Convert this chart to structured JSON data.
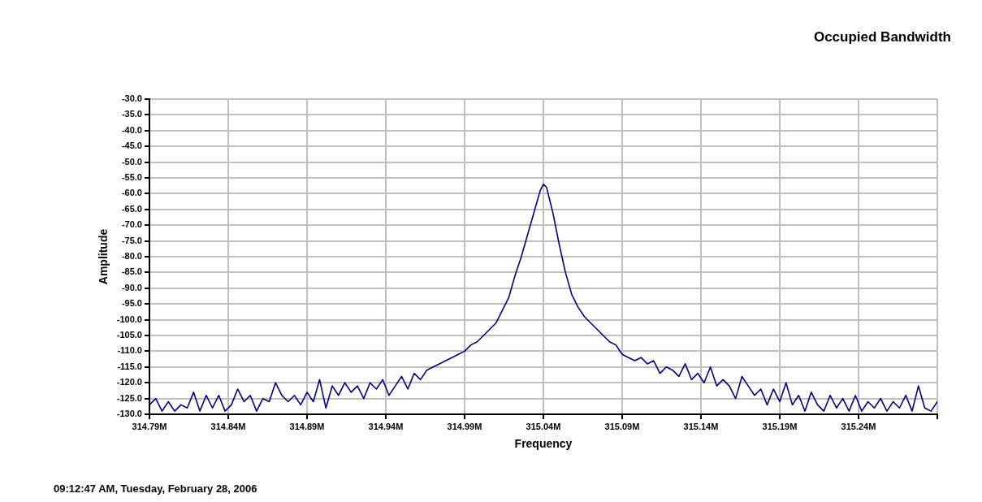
{
  "chart_data": {
    "type": "line",
    "title": "Occupied Bandwidth",
    "xlabel": "Frequency",
    "ylabel": "Amplitude",
    "annotations": [
      "09:12:47 AM, Tuesday, February 28, 2006"
    ],
    "xlim": [
      314.79,
      315.29
    ],
    "xticks": [
      {
        "value": 314.79,
        "label": "314.79M"
      },
      {
        "value": 314.84,
        "label": "314.84M"
      },
      {
        "value": 314.89,
        "label": "314.89M"
      },
      {
        "value": 314.94,
        "label": "314.94M"
      },
      {
        "value": 314.99,
        "label": "314.99M"
      },
      {
        "value": 315.04,
        "label": "315.04M"
      },
      {
        "value": 315.09,
        "label": "315.09M"
      },
      {
        "value": 315.14,
        "label": "315.14M"
      },
      {
        "value": 315.19,
        "label": "315.19M"
      },
      {
        "value": 315.24,
        "label": "315.24M"
      },
      {
        "value": 315.29,
        "label": null
      }
    ],
    "ylim": [
      -130,
      -30
    ],
    "yticks": [
      {
        "value": -30,
        "label": "-30.0"
      },
      {
        "value": -35,
        "label": "-35.0"
      },
      {
        "value": -40,
        "label": "-40.0"
      },
      {
        "value": -45,
        "label": "-45.0"
      },
      {
        "value": -50,
        "label": "-50.0"
      },
      {
        "value": -55,
        "label": "-55.0"
      },
      {
        "value": -60,
        "label": "-60.0"
      },
      {
        "value": -65,
        "label": "-65.0"
      },
      {
        "value": -70,
        "label": "-70.0"
      },
      {
        "value": -75,
        "label": "-75.0"
      },
      {
        "value": -80,
        "label": "-80.0"
      },
      {
        "value": -85,
        "label": "-85.0"
      },
      {
        "value": -90,
        "label": "-90.0"
      },
      {
        "value": -95,
        "label": "-95.0"
      },
      {
        "value": -100,
        "label": "-100.0"
      },
      {
        "value": -105,
        "label": "-105.0"
      },
      {
        "value": -110,
        "label": "-110.0"
      },
      {
        "value": -115,
        "label": "-115.0"
      },
      {
        "value": -120,
        "label": "-120.0"
      },
      {
        "value": -125,
        "label": "-125.0"
      },
      {
        "value": -130,
        "label": "-130.0"
      }
    ],
    "grid": true,
    "legend": false,
    "marker": "none",
    "line_style": "solid",
    "x": [
      314.79,
      314.794,
      314.798,
      314.802,
      314.806,
      314.81,
      314.814,
      314.818,
      314.822,
      314.826,
      314.83,
      314.834,
      314.838,
      314.842,
      314.846,
      314.85,
      314.854,
      314.858,
      314.862,
      314.866,
      314.87,
      314.874,
      314.878,
      314.882,
      314.886,
      314.89,
      314.894,
      314.898,
      314.902,
      314.906,
      314.91,
      314.914,
      314.918,
      314.922,
      314.926,
      314.93,
      314.934,
      314.938,
      314.942,
      314.946,
      314.95,
      314.954,
      314.958,
      314.962,
      314.966,
      314.97,
      314.974,
      314.978,
      314.982,
      314.986,
      314.99,
      314.994,
      314.998,
      315.002,
      315.006,
      315.01,
      315.014,
      315.018,
      315.022,
      315.026,
      315.03,
      315.034,
      315.038,
      315.04,
      315.042,
      315.046,
      315.05,
      315.054,
      315.058,
      315.062,
      315.066,
      315.07,
      315.074,
      315.078,
      315.082,
      315.086,
      315.09,
      315.094,
      315.098,
      315.102,
      315.106,
      315.11,
      315.114,
      315.118,
      315.122,
      315.126,
      315.13,
      315.134,
      315.138,
      315.142,
      315.146,
      315.15,
      315.154,
      315.158,
      315.162,
      315.166,
      315.17,
      315.174,
      315.178,
      315.182,
      315.186,
      315.19,
      315.194,
      315.198,
      315.202,
      315.206,
      315.21,
      315.214,
      315.218,
      315.222,
      315.226,
      315.23,
      315.234,
      315.238,
      315.242,
      315.246,
      315.25,
      315.254,
      315.258,
      315.262,
      315.266,
      315.27,
      315.274,
      315.278,
      315.282,
      315.286,
      315.29
    ],
    "series": [
      {
        "color": "#000080",
        "values": [
          -127,
          -125,
          -129,
          -126,
          -129,
          -127,
          -128,
          -123,
          -129,
          -124,
          -128,
          -124,
          -129,
          -127,
          -122,
          -126,
          -124,
          -129,
          -125,
          -126,
          -120,
          -124,
          -126,
          -124,
          -127,
          -123,
          -126,
          -119,
          -128,
          -121,
          -124,
          -120,
          -123,
          -121,
          -125,
          -120,
          -122,
          -119,
          -124,
          -121,
          -118,
          -122,
          -117,
          -119,
          -116,
          -115,
          -114,
          -113,
          -112,
          -111,
          -110,
          -108,
          -107,
          -105,
          -103,
          -101,
          -97,
          -93,
          -86,
          -80,
          -73,
          -66,
          -59,
          -57,
          -58,
          -66,
          -76,
          -85,
          -92,
          -96,
          -99,
          -101,
          -103,
          -105,
          -107,
          -108,
          -111,
          -112,
          -113,
          -112,
          -114,
          -113,
          -117,
          -115,
          -116,
          -118,
          -114,
          -119,
          -117,
          -120,
          -115,
          -121,
          -119,
          -121,
          -125,
          -118,
          -121,
          -124,
          -122,
          -127,
          -122,
          -126,
          -120,
          -127,
          -124,
          -129,
          -123,
          -127,
          -129,
          -124,
          -128,
          -125,
          -129,
          -124,
          -129,
          -126,
          -128,
          -125,
          -129,
          -126,
          -128,
          -124,
          -129,
          -121,
          -128,
          -129,
          -126
        ]
      }
    ]
  }
}
